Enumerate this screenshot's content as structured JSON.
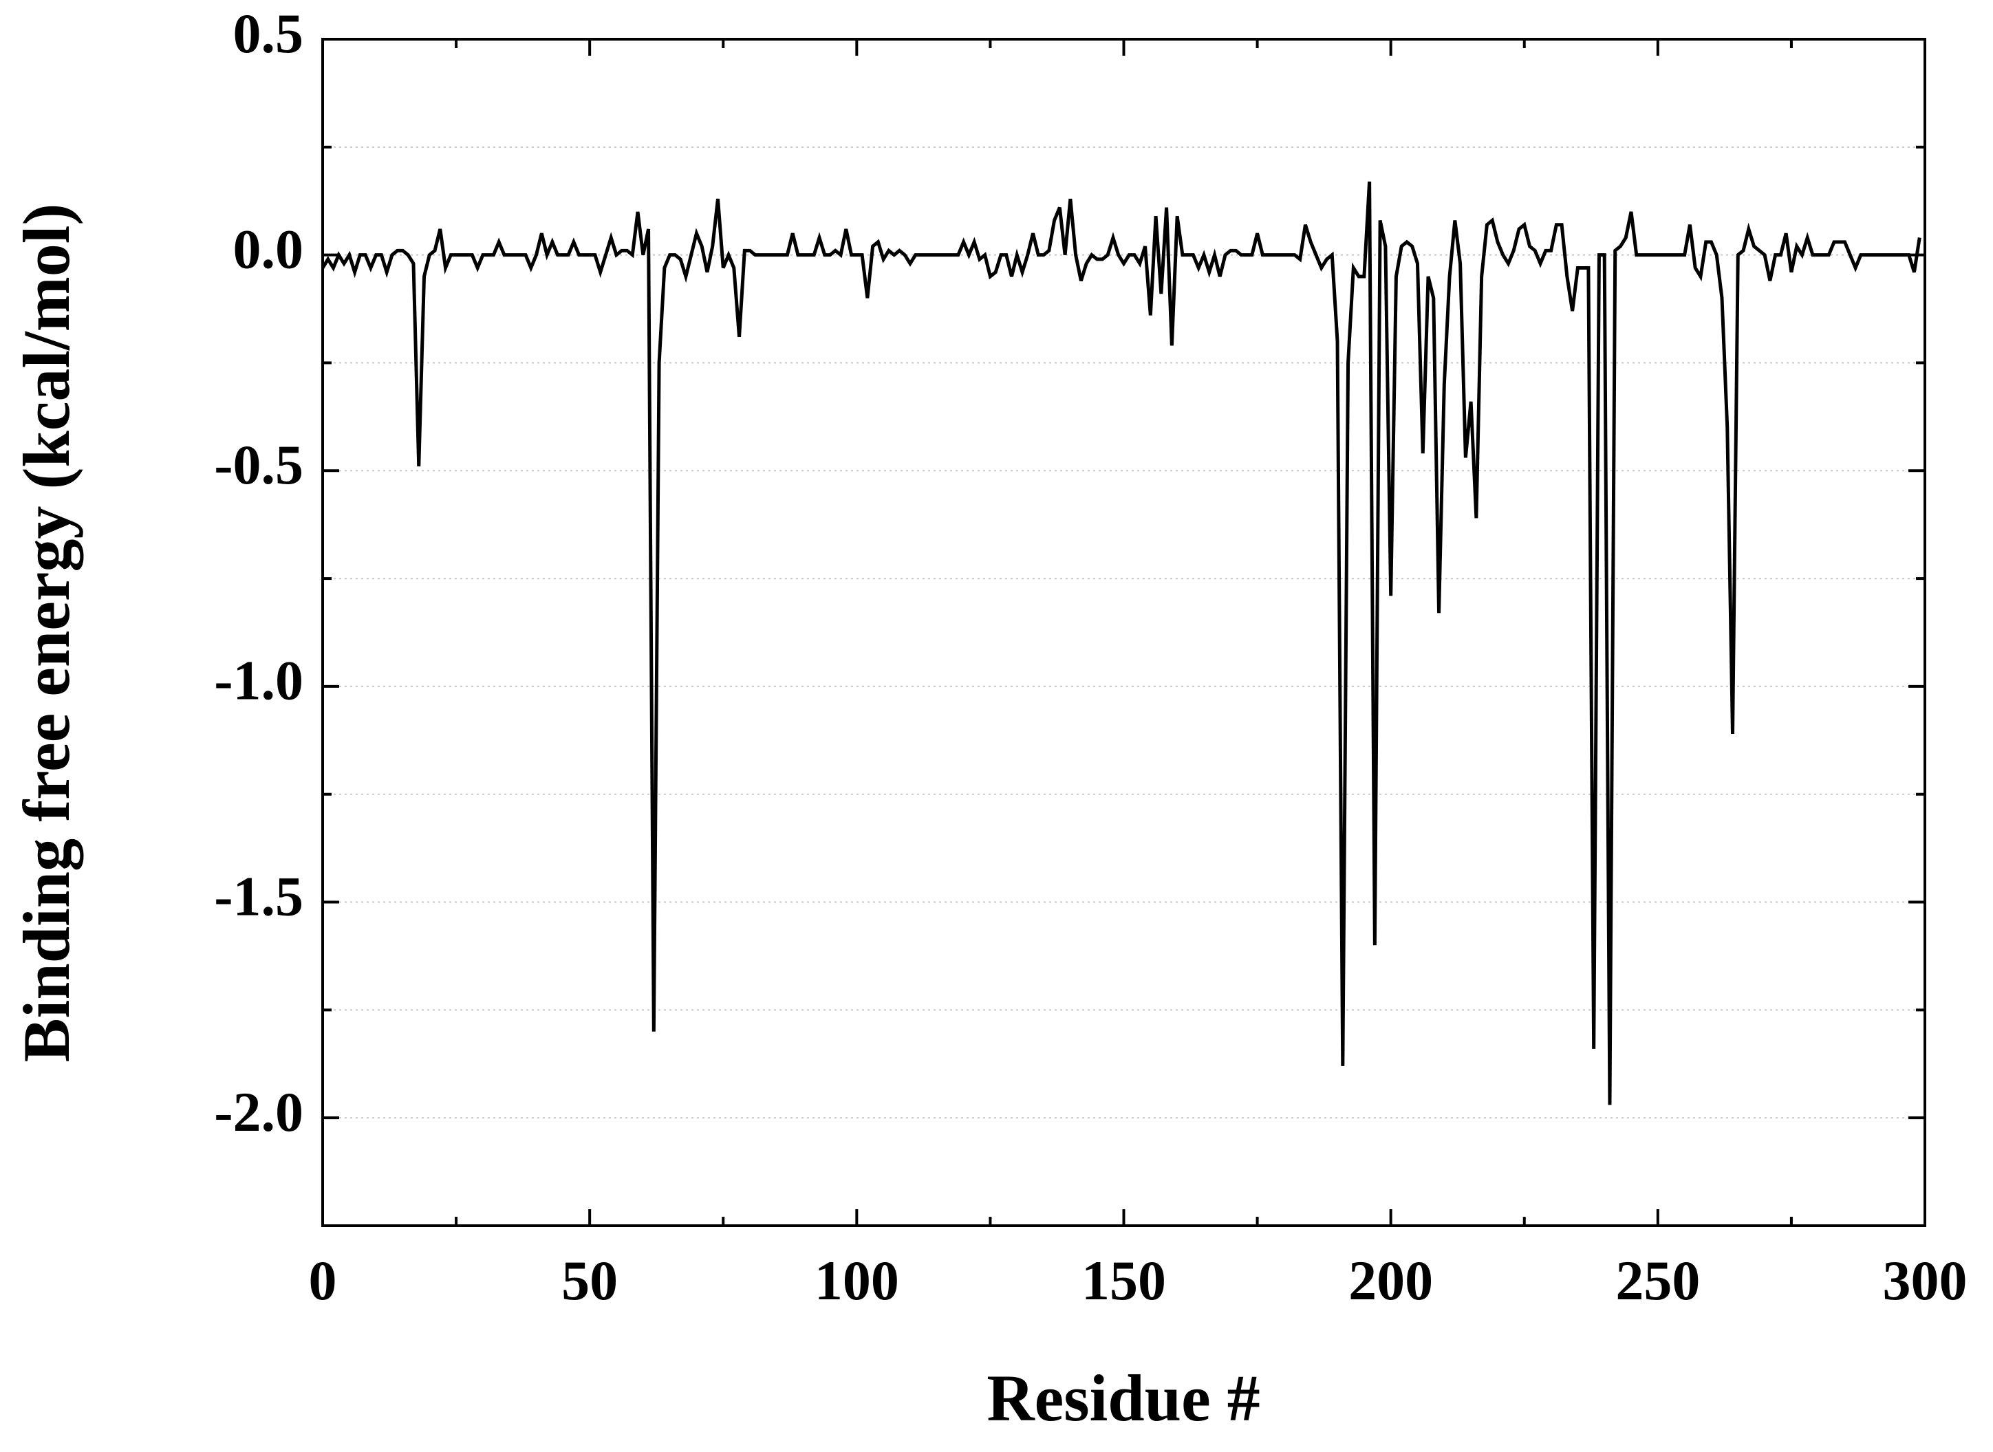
{
  "chart_data": {
    "type": "line",
    "xlabel": "Residue #",
    "ylabel": "Binding free energy (kcal/mol)",
    "x": [
      0,
      1,
      2,
      3,
      4,
      5,
      6,
      7,
      8,
      9,
      10,
      11,
      12,
      13,
      14,
      15,
      16,
      17,
      18,
      19,
      20,
      21,
      22,
      23,
      24,
      25,
      26,
      27,
      28,
      29,
      30,
      31,
      32,
      33,
      34,
      35,
      36,
      37,
      38,
      39,
      40,
      41,
      42,
      43,
      44,
      45,
      46,
      47,
      48,
      49,
      50,
      51,
      52,
      53,
      54,
      55,
      56,
      57,
      58,
      59,
      60,
      61,
      62,
      63,
      64,
      65,
      66,
      67,
      68,
      69,
      70,
      71,
      72,
      73,
      74,
      75,
      76,
      77,
      78,
      79,
      80,
      81,
      82,
      83,
      84,
      85,
      86,
      87,
      88,
      89,
      90,
      91,
      92,
      93,
      94,
      95,
      96,
      97,
      98,
      99,
      100,
      101,
      102,
      103,
      104,
      105,
      106,
      107,
      108,
      109,
      110,
      111,
      112,
      113,
      114,
      115,
      116,
      117,
      118,
      119,
      120,
      121,
      122,
      123,
      124,
      125,
      126,
      127,
      128,
      129,
      130,
      131,
      132,
      133,
      134,
      135,
      136,
      137,
      138,
      139,
      140,
      141,
      142,
      143,
      144,
      145,
      146,
      147,
      148,
      149,
      150,
      151,
      152,
      153,
      154,
      155,
      156,
      157,
      158,
      159,
      160,
      161,
      162,
      163,
      164,
      165,
      166,
      167,
      168,
      169,
      170,
      171,
      172,
      173,
      174,
      175,
      176,
      177,
      178,
      179,
      180,
      181,
      182,
      183,
      184,
      185,
      186,
      187,
      188,
      189,
      190,
      191,
      192,
      193,
      194,
      195,
      196,
      197,
      198,
      199,
      200,
      201,
      202,
      203,
      204,
      205,
      206,
      207,
      208,
      209,
      210,
      211,
      212,
      213,
      214,
      215,
      216,
      217,
      218,
      219,
      220,
      221,
      222,
      223,
      224,
      225,
      226,
      227,
      228,
      229,
      230,
      231,
      232,
      233,
      234,
      235,
      236,
      237,
      238,
      239,
      240,
      241,
      242,
      243,
      244,
      245,
      246,
      247,
      248,
      249,
      250,
      251,
      252,
      253,
      254,
      255,
      256,
      257,
      258,
      259,
      260,
      261,
      262,
      263,
      264,
      265,
      266,
      267,
      268,
      269,
      270,
      271,
      272,
      273,
      274,
      275,
      276,
      277,
      278,
      279,
      280,
      281,
      282,
      283,
      284,
      285,
      286,
      287,
      288,
      289,
      290,
      291,
      292,
      293,
      294,
      295,
      296,
      297,
      298,
      299
    ],
    "values": [
      -0.03,
      -0.01,
      -0.03,
      0,
      -0.02,
      0,
      -0.04,
      0,
      0,
      -0.03,
      0,
      0,
      -0.04,
      0,
      0.01,
      0.01,
      0,
      -0.02,
      -0.49,
      -0.05,
      0,
      0.01,
      0.06,
      -0.03,
      0,
      0,
      0,
      0,
      0,
      -0.03,
      0,
      0,
      0,
      0.03,
      0,
      0,
      0,
      0,
      0,
      -0.03,
      0,
      0.05,
      0,
      0.03,
      0,
      0,
      0,
      0.03,
      0,
      0,
      0,
      0,
      -0.04,
      0,
      0.04,
      0,
      0.01,
      0.01,
      0,
      0.1,
      0,
      0.06,
      -1.8,
      -0.25,
      -0.03,
      0,
      0,
      -0.01,
      -0.05,
      0,
      0.05,
      0.02,
      -0.04,
      0.02,
      0.13,
      -0.03,
      0,
      -0.03,
      -0.19,
      0.01,
      0.01,
      0,
      0,
      0,
      0,
      0,
      0,
      0,
      0.05,
      0,
      0,
      0,
      0,
      0.04,
      0,
      0,
      0.01,
      0,
      0.06,
      0,
      0,
      0,
      -0.1,
      0.02,
      0.03,
      -0.01,
      0.01,
      0,
      0.01,
      0,
      -0.02,
      0,
      0,
      0,
      0,
      0,
      0,
      0,
      0,
      0,
      0.03,
      0,
      0.03,
      -0.01,
      0,
      -0.05,
      -0.04,
      0,
      0,
      -0.05,
      0,
      -0.04,
      0,
      0.05,
      0,
      0,
      0.01,
      0.08,
      0.11,
      0,
      0.13,
      0,
      -0.06,
      -0.02,
      0,
      -0.01,
      -0.01,
      0,
      0.04,
      0,
      -0.02,
      0,
      0,
      -0.02,
      0.02,
      -0.14,
      0.09,
      -0.09,
      0.11,
      -0.21,
      0.09,
      0,
      0,
      0,
      -0.03,
      0,
      -0.04,
      0,
      -0.05,
      0,
      0.01,
      0.01,
      0,
      0,
      0,
      0.05,
      0,
      0,
      0,
      0,
      0,
      0,
      0,
      -0.01,
      0.07,
      0.03,
      0,
      -0.03,
      -0.01,
      0,
      -0.2,
      -1.88,
      -0.25,
      -0.03,
      -0.05,
      -0.05,
      0.17,
      -1.6,
      0.08,
      0.02,
      -0.79,
      -0.05,
      0.02,
      0.03,
      0.02,
      -0.02,
      -0.46,
      -0.05,
      -0.1,
      -0.83,
      -0.3,
      -0.05,
      0.08,
      -0.02,
      -0.47,
      -0.34,
      -0.61,
      -0.05,
      0.07,
      0.08,
      0.03,
      0,
      -0.02,
      0.01,
      0.06,
      0.07,
      0.02,
      0.01,
      -0.02,
      0.01,
      0.01,
      0.07,
      0.07,
      -0.05,
      -0.13,
      -0.03,
      -0.03,
      -0.03,
      -1.84,
      0,
      0,
      -1.97,
      0.01,
      0.02,
      0.04,
      0.1,
      0,
      0,
      0,
      0,
      0,
      0,
      0,
      0,
      0,
      0,
      0.07,
      -0.03,
      -0.05,
      0.03,
      0.03,
      0,
      -0.1,
      -0.4,
      -1.11,
      0,
      0.01,
      0.06,
      0.02,
      0.01,
      0,
      -0.06,
      0,
      0,
      0.05,
      -0.04,
      0.02,
      0,
      0.04,
      0,
      0,
      0,
      0,
      0.03,
      0.03,
      0.03,
      0,
      -0.03,
      0,
      0,
      0,
      0,
      0,
      0,
      0,
      0,
      0,
      0,
      -0.04,
      0.04
    ],
    "color": "#000000",
    "xlim": [
      0,
      300
    ],
    "xticks": [
      0,
      50,
      100,
      150,
      200,
      250,
      300
    ],
    "xminorticks": [
      25,
      75,
      125,
      175,
      225,
      275
    ],
    "ylim": [
      -2.25,
      0.5
    ],
    "yticks": [
      0.5,
      {
        "value": 0,
        "label": "0.0"
      },
      -0.5,
      {
        "value": -1,
        "label": "-1.0"
      },
      -1.5,
      {
        "value": -2,
        "label": "-2.0"
      }
    ],
    "yminorticks": [
      0.25,
      -0.25,
      -0.75,
      -1.25,
      -1.75
    ],
    "grid": true
  }
}
